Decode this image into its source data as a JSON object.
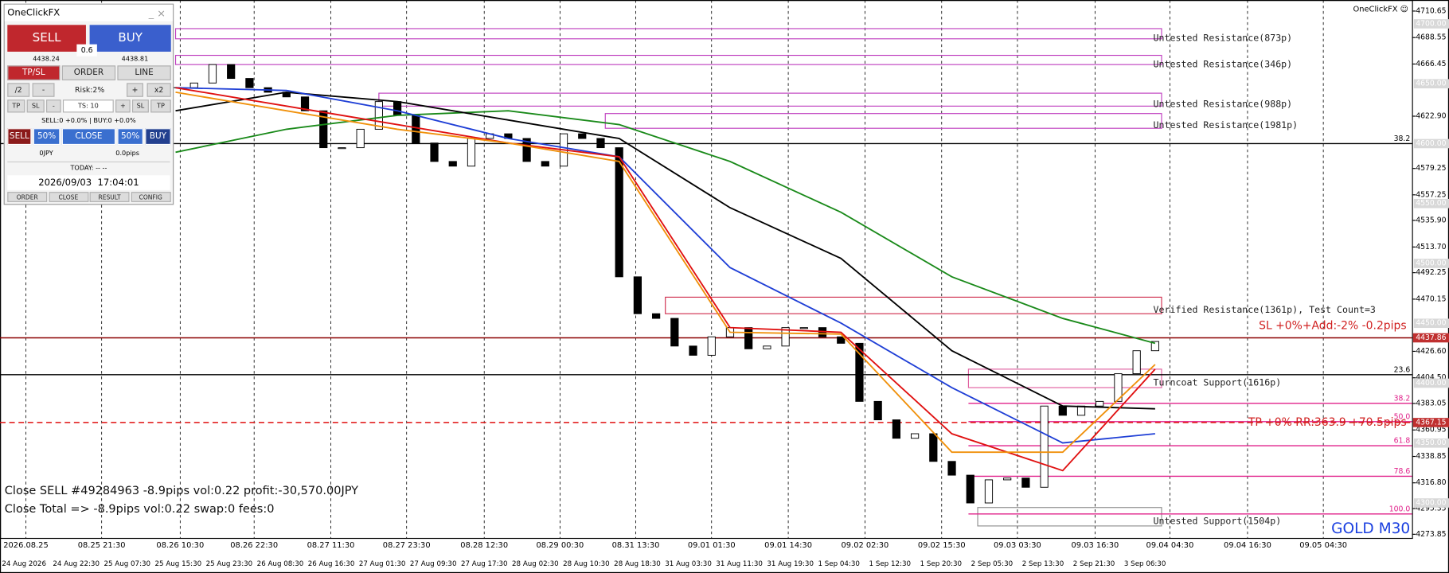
{
  "panel": {
    "title": "OneClickFX",
    "sell": "SELL",
    "buy": "BUY",
    "lot": "0.6",
    "bid": "4438.24",
    "ask": "4438.81",
    "tabs": [
      "TP/SL",
      "ORDER",
      "LINE"
    ],
    "row1": [
      "/2",
      "-",
      "Risk:2%",
      "+",
      "x2"
    ],
    "row2": [
      "TP",
      "SL",
      "-",
      "TS: 10",
      "+",
      "SL",
      "TP"
    ],
    "status": "SELL:0 +0.0% | BUY:0 +0.0%",
    "row3": [
      "SELL",
      "50%",
      "CLOSE",
      "50%",
      "BUY"
    ],
    "profit": "0JPY",
    "pips": "0.0pips",
    "today": "TODAY: -- --",
    "datetime": "2026/09/03  17:04:01",
    "footer": [
      "ORDER",
      "CLOSE",
      "RESULT",
      "CONFIG"
    ]
  },
  "chart": {
    "type": "candlestick",
    "symbol": "GOLD M30",
    "brand": "OneClickFX ☺",
    "ylim": [
      4270.8,
      4719.9
    ],
    "yticks": [
      4710.65,
      4688.55,
      4666.45,
      {
        "value": 4622.9,
        "label": "4622.90"
      },
      4579.25,
      4557.25,
      {
        "value": 4535.9,
        "label": "4535.90"
      },
      {
        "value": 4513.7,
        "label": "4513.70"
      },
      4492.25,
      4470.15,
      {
        "value": 4426.6,
        "label": "4426.60"
      },
      {
        "value": 4404.5,
        "label": "4404.50"
      },
      4383.05,
      4360.95,
      4338.85,
      {
        "value": 4316.8,
        "label": "4316.80"
      },
      4295.35,
      4273.85
    ],
    "round_levels": [
      {
        "value": 4700,
        "label": "4700.00"
      },
      {
        "value": 4650,
        "label": "4650.00"
      },
      {
        "value": 4600,
        "label": "4600.00"
      },
      {
        "value": 4550,
        "label": "4550.00"
      },
      {
        "value": 4500,
        "label": "4500.00"
      },
      {
        "value": 4450,
        "label": "4450.00"
      },
      {
        "value": 4400,
        "label": "4400.00"
      },
      {
        "value": 4350,
        "label": "4350.00"
      },
      {
        "value": 4300,
        "label": "4300.00"
      }
    ],
    "time_top": [
      "2026.08.25",
      "08.25 21:30",
      "08.26 10:30",
      "08.26 22:30",
      "08.27 11:30",
      "08.27 23:30",
      "08.28 12:30",
      "08.29 00:30",
      "08.31 13:30",
      "09.01 01:30",
      "09.01 14:30",
      "09.02 02:30",
      "09.02 15:30",
      "09.03 03:30",
      "09.03 16:30",
      "09.04 04:30",
      "09.04 16:30",
      "09.05 04:30"
    ],
    "time_bottom": [
      "24 Aug 2026",
      "24 Aug 22:30",
      "25 Aug 07:30",
      "25 Aug 15:30",
      "25 Aug 23:30",
      "26 Aug 08:30",
      "26 Aug 16:30",
      "27 Aug 01:30",
      "27 Aug 09:30",
      "27 Aug 17:30",
      "28 Aug 02:30",
      "28 Aug 10:30",
      "28 Aug 18:30",
      "31 Aug 03:30",
      "31 Aug 11:30",
      "31 Aug 19:30",
      "1 Sep 04:30",
      "1 Sep 12:30",
      "1 Sep 20:30",
      "2 Sep 05:30",
      "2 Sep 13:30",
      "2 Sep 21:30",
      "3 Sep 06:30"
    ],
    "closes": [
      4646.7,
      4650.6,
      4666.0,
      4654.4,
      4646.7,
      4642.9,
      4639.0,
      4627.4,
      4596.6,
      4596.6,
      4612.0,
      4635.1,
      4623.6,
      4600.5,
      4585.1,
      4581.2,
      4604.3,
      4608.2,
      4604.3,
      4585.1,
      4581.2,
      4608.2,
      4604.3,
      4596.6,
      4488.8,
      4458.0,
      4454.1,
      4431.0,
      4423.3,
      4438.7,
      4446.4,
      4428.7,
      4431.0,
      4446.4,
      4446.4,
      4438.7,
      4433.3,
      4384.8,
      4369.4,
      4354.0,
      4357.8,
      4334.7,
      4323.2,
      4300.0,
      4319.3,
      4320.8,
      4313.1,
      4380.9,
      4373.2,
      4380.9,
      4384.8,
      4407.9,
      4427.1,
      4434.8
    ],
    "ma_index": [
      0,
      6,
      12,
      18,
      24,
      30,
      36,
      42,
      48,
      53
    ],
    "series": [
      {
        "color": "#1a8a1a",
        "values": [
          4592.8,
          4612.0,
          4623.6,
          4627.4,
          4615.9,
          4585.1,
          4542.7,
          4488.8,
          4454.1,
          4433.3
        ]
      },
      {
        "color": "#000000",
        "values": [
          4627.4,
          4642.9,
          4635.1,
          4619.7,
          4604.3,
          4546.5,
          4504.2,
          4427.1,
          4380.9,
          4378.6
        ]
      },
      {
        "color": "#1f3fd6",
        "values": [
          4646.7,
          4644.4,
          4627.4,
          4604.3,
          4589.0,
          4496.5,
          4450.2,
          4396.3,
          4350.1,
          4357.8
        ]
      },
      {
        "color": "#e01010",
        "values": [
          4646.7,
          4631.3,
          4615.9,
          4600.5,
          4589.0,
          4446.4,
          4442.5,
          4357.8,
          4327.0,
          4411.7
        ]
      },
      {
        "color": "#f0900a",
        "values": [
          4642.9,
          4627.4,
          4612.0,
          4600.5,
          4585.1,
          4442.5,
          4441.0,
          4342.4,
          4342.4,
          4415.6
        ]
      }
    ],
    "zones": [
      {
        "label": "Untested Resistance(873p)",
        "top": 4696.0,
        "bottom": 4687.5,
        "color": "#c040c0"
      },
      {
        "label": "Untested Resistance(346p)",
        "top": 4673.7,
        "bottom": 4666.0,
        "color": "#c040c0"
      },
      {
        "label": "Untested Resistance(988p)",
        "top": 4642.1,
        "bottom": 4631.3,
        "color": "#c040c0"
      },
      {
        "label": "Untested Resistance(1981p)",
        "top": 4625.1,
        "bottom": 4612.8,
        "color": "#c040c0"
      },
      {
        "label": "Verified Resistance(1361p), Test Count=3",
        "top": 4471.8,
        "bottom": 4458.0,
        "color": "#d03050"
      },
      {
        "label": "Turncoat Support(1616p)",
        "top": 4411.7,
        "bottom": 4396.3,
        "color": "#e060a0"
      },
      {
        "label": "Untested Support(1504p)",
        "top": 4296.2,
        "bottom": 4280.8,
        "color": "#909090"
      }
    ],
    "levels": [
      {
        "value": 4600,
        "label": "38.2",
        "color": "#000000"
      },
      {
        "value": 4407.1,
        "label": "23.6",
        "color": "#000000"
      },
      {
        "value": 4383.2,
        "label": "38.2",
        "color": "#e0208a"
      },
      {
        "value": 4367.9,
        "label": "50.0",
        "color": "#e0208a"
      },
      {
        "value": 4347.8,
        "label": "61.8",
        "color": "#e0208a"
      },
      {
        "value": 4322.3,
        "label": "78.6",
        "color": "#e0208a"
      },
      {
        "value": 4290.8,
        "label": "100.0",
        "color": "#e0208a"
      }
    ],
    "sl": {
      "price": 4437.86,
      "label": "4437.86",
      "text": "SL +0%+Add:-2% -0.2pips"
    },
    "tp": {
      "price": 4367.15,
      "label": "4367.15",
      "text": "TP +0% RR:363.9 +70.5pips"
    },
    "messages": [
      "Close SELL #49284963 -8.9pips vol:0.22 profit:-30,570.00JPY",
      "Close Total => -8.9pips vol:0.22 swap:0 fees:0"
    ]
  }
}
